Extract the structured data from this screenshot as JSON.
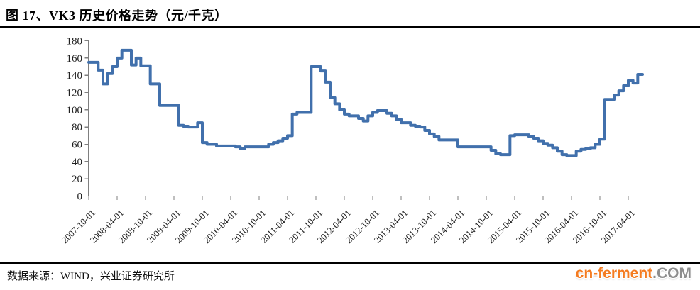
{
  "title": "图 17、VK3 历史价格走势（元/千克）",
  "footer": {
    "source": "数据来源：WIND，兴业证券研究所",
    "logo_main": "cn-ferment",
    "logo_suffix": ".COM"
  },
  "colors": {
    "line": "#4170AC",
    "axis": "#7f7f7f",
    "tick_label": "#1f1f1f",
    "logo_orange": "#F47B20",
    "logo_gray": "#8D8D8D",
    "rule": "#000000"
  },
  "chart_data": {
    "type": "line",
    "title": "VK3 历史价格走势（元/千克）",
    "ylabel": "",
    "xlabel": "",
    "unit": "元/千克",
    "ylim": [
      0,
      180
    ],
    "y_ticks": [
      0,
      20,
      40,
      60,
      80,
      100,
      120,
      140,
      160,
      180
    ],
    "x_tick_labels": [
      "2007-10-01",
      "2008-04-01",
      "2008-10-01",
      "2009-04-01",
      "2009-10-01",
      "2010-04-01",
      "2010-10-01",
      "2011-04-01",
      "2011-10-01",
      "2012-04-01",
      "2012-10-01",
      "2013-04-01",
      "2013-10-01",
      "2014-04-01",
      "2014-10-01",
      "2015-04-01",
      "2015-10-01",
      "2016-04-01",
      "2016-10-01",
      "2017-04-01"
    ],
    "grid": false,
    "legend": "none",
    "render_hint": "step-after",
    "series": [
      {
        "name": "VK3价格(元/千克)",
        "x_monthly_start": "2007-10",
        "x_interval": "monthly",
        "values": [
          155,
          155,
          146,
          130,
          142,
          150,
          160,
          169,
          169,
          152,
          160,
          151,
          151,
          130,
          130,
          105,
          105,
          105,
          105,
          82,
          81,
          80,
          80,
          85,
          62,
          60,
          60,
          58,
          58,
          58,
          58,
          57,
          55,
          57,
          57,
          57,
          57,
          57,
          60,
          62,
          64,
          67,
          70,
          95,
          97,
          97,
          97,
          150,
          150,
          145,
          132,
          114,
          107,
          100,
          95,
          93,
          93,
          90,
          87,
          93,
          97,
          99,
          99,
          96,
          93,
          89,
          85,
          85,
          82,
          81,
          80,
          76,
          72,
          69,
          65,
          65,
          65,
          65,
          57,
          57,
          57,
          57,
          57,
          57,
          57,
          53,
          49,
          48,
          48,
          70,
          71,
          71,
          71,
          69,
          67,
          64,
          61,
          59,
          56,
          52,
          48,
          47,
          47,
          52,
          54,
          55,
          56,
          60,
          66,
          112,
          112,
          117,
          122,
          128,
          134,
          131,
          141,
          141
        ]
      }
    ]
  }
}
